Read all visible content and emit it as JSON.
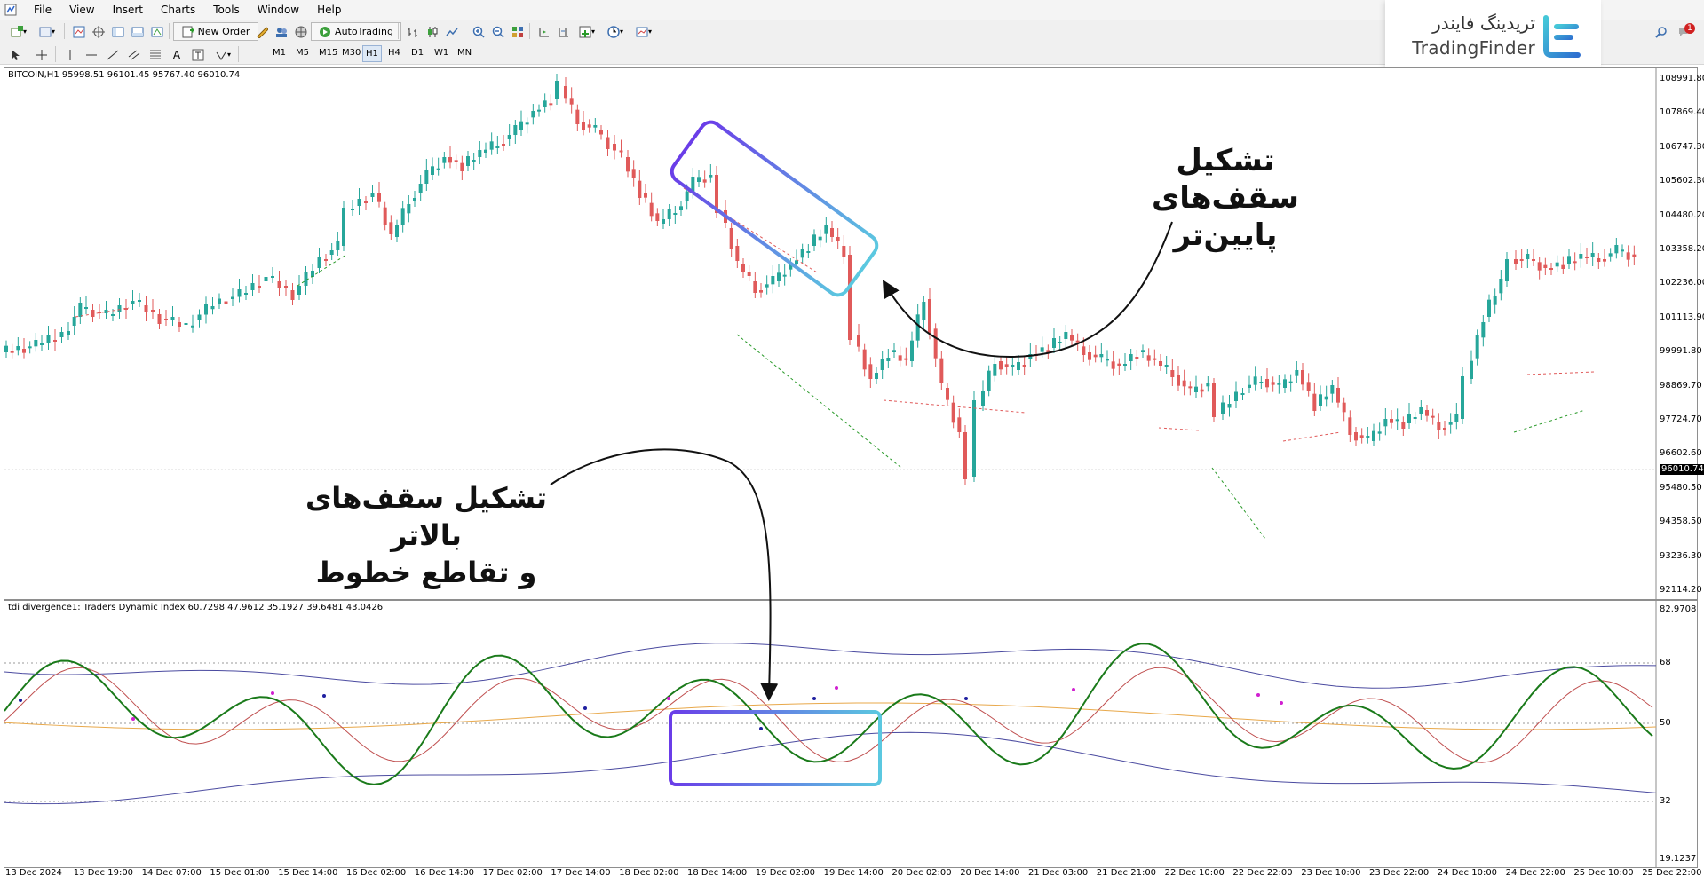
{
  "menu": {
    "items": [
      "File",
      "View",
      "Insert",
      "Charts",
      "Tools",
      "Window",
      "Help"
    ]
  },
  "toolbar": {
    "new_order_label": "New Order",
    "autotrading_label": "AutoTrading",
    "timeframes": [
      "M1",
      "M5",
      "M15",
      "M30",
      "H1",
      "H4",
      "D1",
      "W1",
      "MN"
    ],
    "active_timeframe": "H1"
  },
  "logo": {
    "name_fa": "تریدینگ فایندر",
    "name_en": "TradingFinder"
  },
  "notifications": {
    "count": "1"
  },
  "main_chart": {
    "title": "BITCOIN,H1  95998.51 96101.45 95767.40 96010.74",
    "current_price": "96010.74",
    "price_labels": [
      "108991.80",
      "107869.40",
      "106747.30",
      "105602.30",
      "104480.20",
      "103358.20",
      "102236.00",
      "101113.90",
      "99991.80",
      "98869.70",
      "97724.70",
      "96602.60",
      "95480.50",
      "94358.50",
      "93236.30",
      "92114.20"
    ]
  },
  "indicator": {
    "title": "tdi divergence1: Traders Dynamic Index 60.7298 47.9612 35.1927 39.6481 43.0426",
    "level_labels": [
      "82.9708",
      "68",
      "50",
      "32",
      "19.1237"
    ]
  },
  "time_axis": [
    "13 Dec 2024",
    "13 Dec 19:00",
    "14 Dec 07:00",
    "15 Dec 01:00",
    "15 Dec 14:00",
    "16 Dec 02:00",
    "16 Dec 14:00",
    "17 Dec 02:00",
    "17 Dec 14:00",
    "18 Dec 02:00",
    "18 Dec 14:00",
    "19 Dec 02:00",
    "19 Dec 14:00",
    "20 Dec 02:00",
    "20 Dec 14:00",
    "21 Dec 03:00",
    "21 Dec 21:00",
    "22 Dec 10:00",
    "22 Dec 22:00",
    "23 Dec 10:00",
    "23 Dec 22:00",
    "24 Dec 10:00",
    "24 Dec 22:00",
    "25 Dec 10:00",
    "25 Dec 22:00"
  ],
  "annotations": {
    "lower_highs_line1": "تشکیل سقف‌های",
    "lower_highs_line2": "پایین‌تر",
    "higher_highs_line1": "تشکیل سقف‌های بالاتر",
    "higher_highs_line2": "و تقاطع خطوط"
  },
  "colors": {
    "bull": "#26a69a",
    "bear": "#e05a5a",
    "tdi_green": "#1a7a1a",
    "tdi_red": "#c05050",
    "band": "#4b4ba0",
    "mid": "#e8a84a",
    "box_start": "#6a3de8",
    "box_end": "#5bc8e0"
  }
}
